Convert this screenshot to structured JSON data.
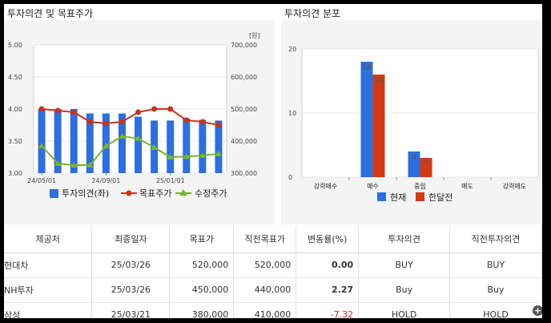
{
  "left_panel": {
    "title": "투자의견 및 목표주가"
  },
  "right_panel": {
    "title": "투자의견 분포"
  },
  "chart_data": [
    {
      "type": "bar+line",
      "title": "투자의견 및 목표주가",
      "left_axis": {
        "ylim": [
          3.0,
          5.0
        ],
        "ticks": [
          "3.00",
          "3.50",
          "4.00",
          "4.50",
          "5.00"
        ]
      },
      "right_axis": {
        "unit_label": "[원]",
        "ylim": [
          300000,
          700000
        ],
        "ticks": [
          "300,000",
          "400,000",
          "500,000",
          "600,000",
          "700,000"
        ]
      },
      "x_tick_labels": [
        "24/05/01",
        "24/09/01",
        "25/01/01"
      ],
      "legend": [
        "투자의견(좌)",
        "목표주가",
        "수정주가"
      ],
      "series": [
        {
          "name": "투자의견(좌)",
          "kind": "bar",
          "color": "#2b6fe0",
          "values": [
            4.0,
            4.0,
            4.0,
            3.93,
            3.93,
            3.93,
            3.88,
            3.82,
            3.82,
            3.85,
            3.83,
            3.82
          ]
        },
        {
          "name": "목표주가",
          "kind": "line",
          "color": "#c8351c",
          "values": [
            500000,
            495000,
            490000,
            460000,
            455000,
            460000,
            490000,
            500000,
            500000,
            465000,
            460000,
            450000
          ]
        },
        {
          "name": "수정주가",
          "kind": "line",
          "color": "#7ab626",
          "values": [
            385000,
            330000,
            325000,
            325000,
            385000,
            415000,
            408000,
            380000,
            350000,
            352000,
            355000,
            360000
          ]
        }
      ]
    },
    {
      "type": "bar",
      "title": "투자의견 분포",
      "categories": [
        "강력매수",
        "매수",
        "중립",
        "매도",
        "강력매도"
      ],
      "ylim": [
        0,
        20
      ],
      "y_ticks": [
        "0",
        "10",
        "20"
      ],
      "legend": [
        "현재",
        "한달전"
      ],
      "series": [
        {
          "name": "현재",
          "color": "#2b6fe0",
          "values": [
            0,
            18,
            4,
            0,
            0
          ]
        },
        {
          "name": "한달전",
          "color": "#d43a12",
          "values": [
            0,
            16,
            3,
            0,
            0
          ]
        }
      ],
      "data_labels": {
        "현재": [
          "",
          "18",
          "4",
          "",
          ""
        ],
        "한달전": [
          "",
          "16",
          "3",
          "",
          ""
        ]
      }
    }
  ],
  "table": {
    "headers": [
      "제공처",
      "최종일자",
      "목표가",
      "직전목표가",
      "변동률(%)",
      "투자의견",
      "직전투자의견"
    ],
    "rows": [
      {
        "provider": "현대차",
        "date": "25/03/26",
        "target": "520,000",
        "prev_target": "520,000",
        "change": "0.00",
        "opinion": "BUY",
        "prev_opinion": "BUY"
      },
      {
        "provider": "NH투자",
        "date": "25/03/26",
        "target": "450,000",
        "prev_target": "440,000",
        "change": "2.27",
        "opinion": "Buy",
        "prev_opinion": "Buy"
      },
      {
        "provider": "삼성",
        "date": "25/03/21",
        "target": "380,000",
        "prev_target": "410,000",
        "change": "-7.32",
        "opinion": "HOLD",
        "prev_opinion": "HOLD"
      }
    ]
  },
  "icons": {
    "more": "plus-icon"
  }
}
